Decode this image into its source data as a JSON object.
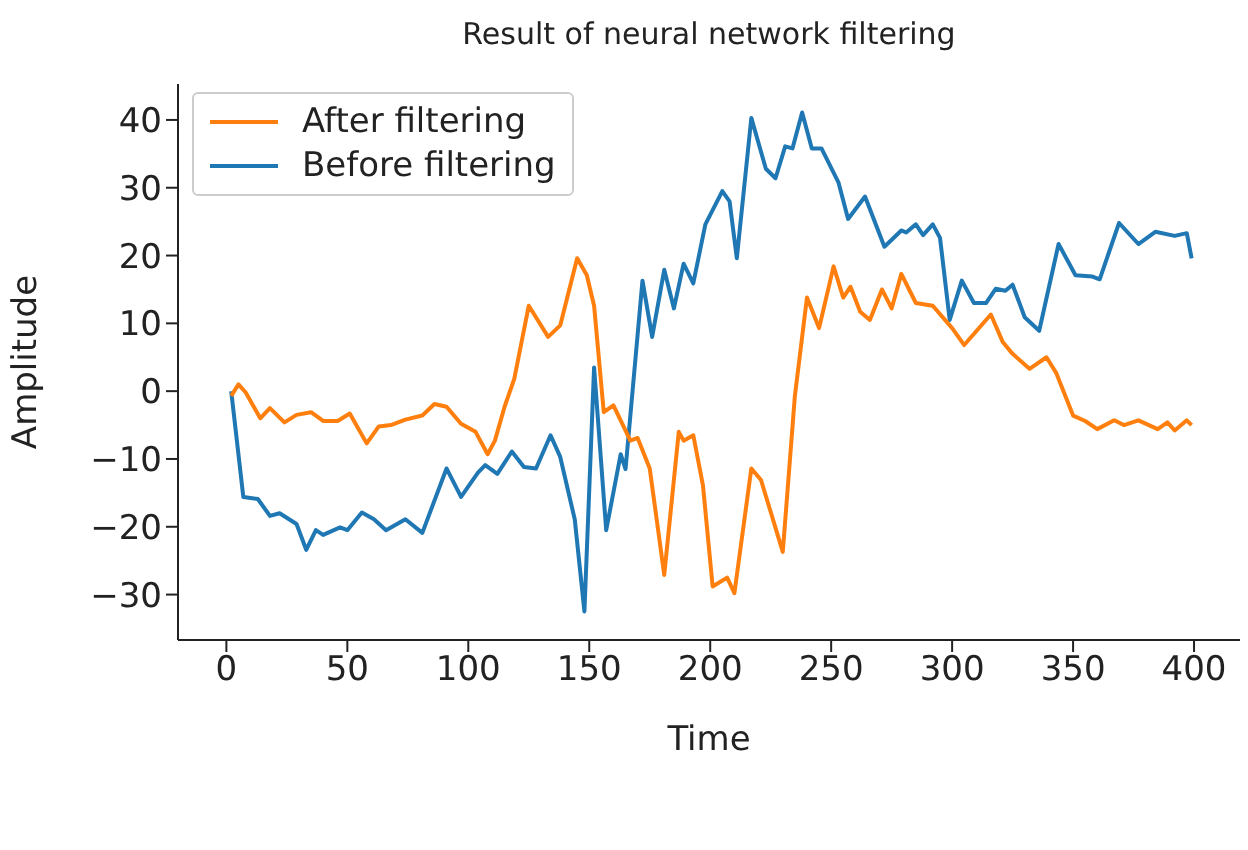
{
  "chart_data": {
    "type": "line",
    "title": "Result of neural network filtering",
    "xlabel": "Time",
    "ylabel": "Amplitude",
    "xlim": [
      -20,
      419
    ],
    "xticks": [
      0,
      50,
      100,
      150,
      200,
      250,
      300,
      350,
      400
    ],
    "ylim": [
      -36.7,
      45.3
    ],
    "yticks": [
      {
        "value": -30,
        "label": "−30"
      },
      {
        "value": -20,
        "label": "−20"
      },
      {
        "value": -10,
        "label": "−10"
      },
      0,
      10,
      20,
      30,
      40
    ],
    "legend": "top left",
    "grid": false,
    "line_style": "solid",
    "marker": "none",
    "series": [
      {
        "name": "Before filtering",
        "color": "#1f77b4",
        "x": [
          2,
          7,
          13,
          18,
          22,
          29,
          33,
          37,
          40,
          47,
          50,
          56,
          61,
          66,
          74,
          81,
          91,
          97,
          104,
          107,
          112,
          118,
          123,
          128,
          134,
          138,
          144,
          148,
          152,
          157,
          163,
          165,
          172,
          176,
          181,
          185,
          189,
          193,
          198,
          205,
          208,
          211,
          217,
          223,
          227,
          231,
          234,
          238,
          242,
          246,
          253,
          257,
          264,
          272,
          279,
          281,
          285,
          288,
          292,
          295,
          299,
          304,
          309,
          314,
          318,
          322,
          325,
          330,
          336,
          344,
          351,
          358,
          361,
          369,
          377,
          384,
          392,
          397,
          399
        ],
        "values": [
          0,
          -15.6,
          -15.9,
          -18.4,
          -18,
          -19.6,
          -23.4,
          -20.5,
          -21.2,
          -20.1,
          -20.5,
          -17.9,
          -18.9,
          -20.5,
          -18.9,
          -20.9,
          -11.4,
          -15.6,
          -12,
          -10.9,
          -12.2,
          -8.9,
          -11.2,
          -11.4,
          -6.5,
          -9.7,
          -18.9,
          -32.5,
          3.5,
          -20.5,
          -9.3,
          -11.5,
          16.3,
          8,
          17.9,
          12.2,
          18.8,
          15.9,
          24.6,
          29.5,
          28,
          19.6,
          40.3,
          32.8,
          31.4,
          36.1,
          35.8,
          41.1,
          35.8,
          35.8,
          30.8,
          25.4,
          28.7,
          21.3,
          23.7,
          23.4,
          24.6,
          23,
          24.6,
          22.6,
          10.5,
          16.3,
          13,
          13,
          15.1,
          14.8,
          15.7,
          10.9,
          8.9,
          21.7,
          17.1,
          16.9,
          16.5,
          24.8,
          21.7,
          23.5,
          22.9,
          23.3,
          19.6
        ]
      },
      {
        "name": "After filtering",
        "color": "#ff7f0e",
        "x": [
          2,
          5,
          8,
          14,
          18,
          24,
          29,
          35,
          40,
          46,
          51,
          58,
          63,
          68,
          74,
          81,
          86,
          91,
          97,
          103,
          108,
          111,
          115,
          119,
          125,
          129,
          133,
          138,
          145,
          149,
          152,
          156,
          160,
          167,
          170,
          175,
          181,
          187,
          189,
          193,
          197,
          201,
          207,
          210,
          217,
          221,
          230,
          235,
          240,
          245,
          251,
          255,
          258,
          262,
          266,
          271,
          275,
          279,
          285,
          292,
          300,
          305,
          316,
          321,
          325,
          332,
          339,
          343,
          350,
          355,
          360,
          367,
          371,
          377,
          385,
          389,
          392,
          397,
          399
        ],
        "values": [
          -0.7,
          1,
          -0.2,
          -4,
          -2.5,
          -4.6,
          -3.5,
          -3.1,
          -4.4,
          -4.4,
          -3.3,
          -7.7,
          -5.2,
          -5,
          -4.2,
          -3.6,
          -1.9,
          -2.3,
          -4.8,
          -6,
          -9.3,
          -7.3,
          -2.3,
          1.8,
          12.6,
          10.3,
          8,
          9.7,
          19.6,
          17.1,
          12.6,
          -3.1,
          -2.1,
          -7.3,
          -6.9,
          -11.4,
          -27.1,
          -6,
          -7.3,
          -6.5,
          -13.9,
          -28.8,
          -27.5,
          -29.8,
          -11.4,
          -13.1,
          -23.7,
          -0.7,
          13.8,
          9.3,
          18.4,
          13.8,
          15.4,
          11.7,
          10.5,
          15,
          12.2,
          17.3,
          13,
          12.6,
          9.3,
          6.8,
          11.3,
          7.2,
          5.5,
          3.3,
          5,
          2.7,
          -3.6,
          -4.4,
          -5.6,
          -4.3,
          -5,
          -4.3,
          -5.6,
          -4.6,
          -5.8,
          -4.3,
          -5
        ]
      }
    ]
  }
}
